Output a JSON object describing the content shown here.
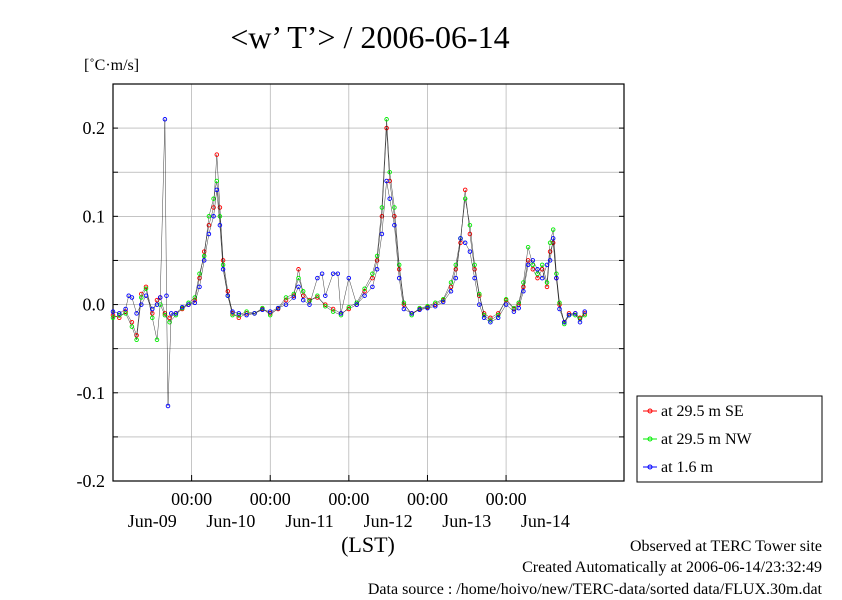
{
  "chart_data": {
    "type": "line",
    "title": "<w’ T’> / 2006-06-14",
    "ylabel": "[˚C·m/s]",
    "xlabel": "(LST)",
    "ylim": [
      -0.2,
      0.25
    ],
    "xlim": [
      0,
      6.5
    ],
    "x_unit": "days from 2006-06-08 00:00 LST",
    "yticks": [
      "0.2",
      "0.1",
      "0.0",
      "-0.1",
      "-0.2"
    ],
    "ytick_values": [
      0.2,
      0.1,
      0.0,
      -0.1,
      -0.2
    ],
    "xticks": [
      {
        "x": 1,
        "time": "00:00"
      },
      {
        "x": 2,
        "time": "00:00"
      },
      {
        "x": 3,
        "time": "00:00"
      },
      {
        "x": 4,
        "time": "00:00"
      },
      {
        "x": 5,
        "time": "00:00"
      }
    ],
    "date_labels": [
      {
        "x": 0.5,
        "label": "Jun-09"
      },
      {
        "x": 1.5,
        "label": "Jun-10"
      },
      {
        "x": 2.5,
        "label": "Jun-11"
      },
      {
        "x": 3.5,
        "label": "Jun-12"
      },
      {
        "x": 4.5,
        "label": "Jun-13"
      },
      {
        "x": 5.5,
        "label": "Jun-14"
      }
    ],
    "grid": true,
    "legend_position": "right-bottom",
    "series": [
      {
        "name": "at 29.5 m SE",
        "color": "#ff0000",
        "points": [
          [
            0.0,
            -0.012
          ],
          [
            0.08,
            -0.015
          ],
          [
            0.16,
            -0.008
          ],
          [
            0.24,
            -0.02
          ],
          [
            0.3,
            -0.035
          ],
          [
            0.36,
            0.012
          ],
          [
            0.42,
            0.02
          ],
          [
            0.5,
            -0.01
          ],
          [
            0.56,
            0.005
          ],
          [
            0.6,
            0.008
          ],
          [
            0.66,
            -0.01
          ],
          [
            0.72,
            -0.015
          ],
          [
            0.8,
            -0.01
          ],
          [
            0.88,
            -0.005
          ],
          [
            0.96,
            0.0
          ],
          [
            1.04,
            0.005
          ],
          [
            1.1,
            0.03
          ],
          [
            1.16,
            0.06
          ],
          [
            1.22,
            0.09
          ],
          [
            1.28,
            0.11
          ],
          [
            1.32,
            0.17
          ],
          [
            1.36,
            0.11
          ],
          [
            1.4,
            0.05
          ],
          [
            1.46,
            0.015
          ],
          [
            1.52,
            -0.01
          ],
          [
            1.6,
            -0.015
          ],
          [
            1.7,
            -0.01
          ],
          [
            1.8,
            -0.01
          ],
          [
            1.9,
            -0.005
          ],
          [
            2.0,
            -0.01
          ],
          [
            2.1,
            -0.005
          ],
          [
            2.2,
            0.005
          ],
          [
            2.3,
            0.01
          ],
          [
            2.36,
            0.04
          ],
          [
            2.42,
            0.01
          ],
          [
            2.5,
            0.005
          ],
          [
            2.6,
            0.008
          ],
          [
            2.7,
            0.0
          ],
          [
            2.8,
            -0.005
          ],
          [
            2.9,
            -0.01
          ],
          [
            3.0,
            -0.005
          ],
          [
            3.1,
            0.0
          ],
          [
            3.2,
            0.015
          ],
          [
            3.3,
            0.03
          ],
          [
            3.36,
            0.05
          ],
          [
            3.42,
            0.1
          ],
          [
            3.48,
            0.2
          ],
          [
            3.52,
            0.14
          ],
          [
            3.58,
            0.1
          ],
          [
            3.64,
            0.04
          ],
          [
            3.7,
            0.0
          ],
          [
            3.8,
            -0.01
          ],
          [
            3.9,
            -0.005
          ],
          [
            4.0,
            -0.003
          ],
          [
            4.1,
            0.0
          ],
          [
            4.2,
            0.005
          ],
          [
            4.3,
            0.02
          ],
          [
            4.36,
            0.04
          ],
          [
            4.42,
            0.07
          ],
          [
            4.48,
            0.13
          ],
          [
            4.54,
            0.08
          ],
          [
            4.6,
            0.04
          ],
          [
            4.66,
            0.01
          ],
          [
            4.72,
            -0.01
          ],
          [
            4.8,
            -0.015
          ],
          [
            4.9,
            -0.01
          ],
          [
            5.0,
            0.005
          ],
          [
            5.1,
            -0.005
          ],
          [
            5.16,
            0.0
          ],
          [
            5.22,
            0.02
          ],
          [
            5.28,
            0.05
          ],
          [
            5.34,
            0.04
          ],
          [
            5.4,
            0.03
          ],
          [
            5.46,
            0.04
          ],
          [
            5.52,
            0.02
          ],
          [
            5.56,
            0.06
          ],
          [
            5.6,
            0.07
          ],
          [
            5.64,
            0.03
          ],
          [
            5.68,
            0.0
          ],
          [
            5.74,
            -0.02
          ],
          [
            5.8,
            -0.01
          ],
          [
            5.88,
            -0.01
          ],
          [
            5.94,
            -0.015
          ],
          [
            6.0,
            -0.01
          ]
        ]
      },
      {
        "name": "at 29.5 m NW",
        "color": "#00ee00",
        "points": [
          [
            0.0,
            -0.015
          ],
          [
            0.08,
            -0.012
          ],
          [
            0.16,
            -0.01
          ],
          [
            0.24,
            -0.025
          ],
          [
            0.3,
            -0.04
          ],
          [
            0.36,
            0.008
          ],
          [
            0.42,
            0.018
          ],
          [
            0.5,
            -0.015
          ],
          [
            0.56,
            -0.04
          ],
          [
            0.6,
            0.0
          ],
          [
            0.66,
            -0.012
          ],
          [
            0.72,
            -0.02
          ],
          [
            0.8,
            -0.012
          ],
          [
            0.88,
            -0.004
          ],
          [
            0.96,
            0.002
          ],
          [
            1.04,
            0.008
          ],
          [
            1.1,
            0.035
          ],
          [
            1.16,
            0.055
          ],
          [
            1.22,
            0.1
          ],
          [
            1.28,
            0.12
          ],
          [
            1.32,
            0.14
          ],
          [
            1.36,
            0.1
          ],
          [
            1.4,
            0.045
          ],
          [
            1.46,
            0.01
          ],
          [
            1.52,
            -0.012
          ],
          [
            1.6,
            -0.012
          ],
          [
            1.7,
            -0.008
          ],
          [
            1.8,
            -0.01
          ],
          [
            1.9,
            -0.004
          ],
          [
            2.0,
            -0.012
          ],
          [
            2.1,
            -0.004
          ],
          [
            2.2,
            0.008
          ],
          [
            2.3,
            0.012
          ],
          [
            2.36,
            0.03
          ],
          [
            2.42,
            0.015
          ],
          [
            2.5,
            0.004
          ],
          [
            2.6,
            0.01
          ],
          [
            2.7,
            -0.002
          ],
          [
            2.8,
            -0.008
          ],
          [
            2.9,
            -0.012
          ],
          [
            3.0,
            -0.003
          ],
          [
            3.1,
            0.002
          ],
          [
            3.2,
            0.018
          ],
          [
            3.3,
            0.035
          ],
          [
            3.36,
            0.055
          ],
          [
            3.42,
            0.11
          ],
          [
            3.48,
            0.21
          ],
          [
            3.52,
            0.15
          ],
          [
            3.58,
            0.11
          ],
          [
            3.64,
            0.045
          ],
          [
            3.7,
            0.002
          ],
          [
            3.8,
            -0.012
          ],
          [
            3.9,
            -0.004
          ],
          [
            4.0,
            -0.002
          ],
          [
            4.1,
            0.002
          ],
          [
            4.2,
            0.006
          ],
          [
            4.3,
            0.025
          ],
          [
            4.36,
            0.045
          ],
          [
            4.42,
            0.075
          ],
          [
            4.48,
            0.12
          ],
          [
            4.54,
            0.09
          ],
          [
            4.6,
            0.045
          ],
          [
            4.66,
            0.012
          ],
          [
            4.72,
            -0.012
          ],
          [
            4.8,
            -0.018
          ],
          [
            4.9,
            -0.012
          ],
          [
            5.0,
            0.006
          ],
          [
            5.1,
            -0.004
          ],
          [
            5.16,
            0.002
          ],
          [
            5.22,
            0.025
          ],
          [
            5.28,
            0.065
          ],
          [
            5.34,
            0.045
          ],
          [
            5.4,
            0.035
          ],
          [
            5.46,
            0.045
          ],
          [
            5.52,
            0.025
          ],
          [
            5.56,
            0.07
          ],
          [
            5.6,
            0.085
          ],
          [
            5.64,
            0.035
          ],
          [
            5.68,
            0.002
          ],
          [
            5.74,
            -0.022
          ],
          [
            5.8,
            -0.012
          ],
          [
            5.88,
            -0.012
          ],
          [
            5.94,
            -0.016
          ],
          [
            6.0,
            -0.012
          ]
        ]
      },
      {
        "name": "at 1.6 m",
        "color": "#0000ff",
        "points": [
          [
            0.0,
            -0.008
          ],
          [
            0.08,
            -0.01
          ],
          [
            0.16,
            -0.005
          ],
          [
            0.2,
            0.01
          ],
          [
            0.24,
            0.008
          ],
          [
            0.3,
            -0.01
          ],
          [
            0.36,
            0.0
          ],
          [
            0.42,
            0.01
          ],
          [
            0.5,
            -0.005
          ],
          [
            0.56,
            0.0
          ],
          [
            0.6,
            0.008
          ],
          [
            0.66,
            0.21
          ],
          [
            0.68,
            0.01
          ],
          [
            0.7,
            -0.115
          ],
          [
            0.74,
            -0.01
          ],
          [
            0.8,
            -0.01
          ],
          [
            0.88,
            -0.003
          ],
          [
            0.96,
            0.0
          ],
          [
            1.04,
            0.002
          ],
          [
            1.1,
            0.02
          ],
          [
            1.16,
            0.05
          ],
          [
            1.22,
            0.08
          ],
          [
            1.28,
            0.1
          ],
          [
            1.32,
            0.13
          ],
          [
            1.36,
            0.09
          ],
          [
            1.4,
            0.04
          ],
          [
            1.46,
            0.01
          ],
          [
            1.52,
            -0.008
          ],
          [
            1.6,
            -0.01
          ],
          [
            1.7,
            -0.012
          ],
          [
            1.8,
            -0.01
          ],
          [
            1.9,
            -0.006
          ],
          [
            2.0,
            -0.008
          ],
          [
            2.1,
            -0.004
          ],
          [
            2.2,
            0.0
          ],
          [
            2.3,
            0.008
          ],
          [
            2.36,
            0.02
          ],
          [
            2.42,
            0.005
          ],
          [
            2.5,
            0.0
          ],
          [
            2.6,
            0.03
          ],
          [
            2.66,
            0.035
          ],
          [
            2.7,
            0.01
          ],
          [
            2.8,
            0.035
          ],
          [
            2.86,
            0.035
          ],
          [
            2.9,
            -0.01
          ],
          [
            3.0,
            0.03
          ],
          [
            3.1,
            0.0
          ],
          [
            3.2,
            0.01
          ],
          [
            3.3,
            0.02
          ],
          [
            3.36,
            0.04
          ],
          [
            3.42,
            0.08
          ],
          [
            3.48,
            0.14
          ],
          [
            3.52,
            0.12
          ],
          [
            3.58,
            0.09
          ],
          [
            3.64,
            0.03
          ],
          [
            3.7,
            -0.005
          ],
          [
            3.8,
            -0.01
          ],
          [
            3.9,
            -0.006
          ],
          [
            4.0,
            -0.004
          ],
          [
            4.1,
            -0.002
          ],
          [
            4.2,
            0.003
          ],
          [
            4.3,
            0.015
          ],
          [
            4.36,
            0.03
          ],
          [
            4.42,
            0.075
          ],
          [
            4.48,
            0.07
          ],
          [
            4.54,
            0.06
          ],
          [
            4.6,
            0.03
          ],
          [
            4.66,
            0.0
          ],
          [
            4.72,
            -0.015
          ],
          [
            4.8,
            -0.02
          ],
          [
            4.9,
            -0.015
          ],
          [
            5.0,
            0.0
          ],
          [
            5.1,
            -0.008
          ],
          [
            5.16,
            -0.004
          ],
          [
            5.22,
            0.015
          ],
          [
            5.28,
            0.045
          ],
          [
            5.34,
            0.05
          ],
          [
            5.4,
            0.04
          ],
          [
            5.46,
            0.03
          ],
          [
            5.52,
            0.045
          ],
          [
            5.56,
            0.05
          ],
          [
            5.6,
            0.075
          ],
          [
            5.64,
            0.03
          ],
          [
            5.68,
            -0.005
          ],
          [
            5.74,
            -0.02
          ],
          [
            5.8,
            -0.012
          ],
          [
            5.88,
            -0.01
          ],
          [
            5.94,
            -0.02
          ],
          [
            6.0,
            -0.008
          ]
        ]
      }
    ]
  },
  "footer": {
    "line1": "Observed at TERC Tower site",
    "line2": "Created Automatically at 2006-06-14/23:32:49",
    "line3": "Data source : /home/hoivo/new/TERC-data/sorted data/FLUX.30m.dat"
  }
}
